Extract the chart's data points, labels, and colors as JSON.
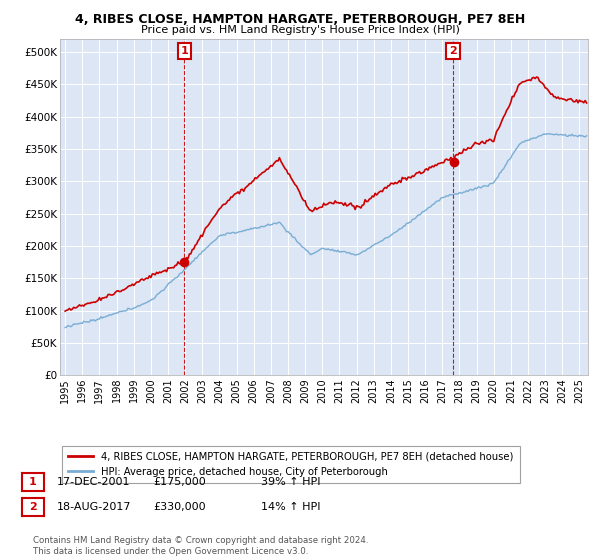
{
  "title1": "4, RIBES CLOSE, HAMPTON HARGATE, PETERBOROUGH, PE7 8EH",
  "title2": "Price paid vs. HM Land Registry's House Price Index (HPI)",
  "legend_label1": "4, RIBES CLOSE, HAMPTON HARGATE, PETERBOROUGH, PE7 8EH (detached house)",
  "legend_label2": "HPI: Average price, detached house, City of Peterborough",
  "transaction1_date": "17-DEC-2001",
  "transaction1_price": 175000,
  "transaction1_hpi": "39% ↑ HPI",
  "transaction2_date": "18-AUG-2017",
  "transaction2_price": 330000,
  "transaction2_hpi": "14% ↑ HPI",
  "footnote": "Contains HM Land Registry data © Crown copyright and database right 2024.\nThis data is licensed under the Open Government Licence v3.0.",
  "line_color_property": "#cc0000",
  "line_color_hpi": "#7aadd4",
  "vline_color": "#cc0000",
  "background_color": "#ffffff",
  "plot_bg_color": "#dce6f5",
  "ylim": [
    0,
    520000
  ],
  "yticks": [
    0,
    50000,
    100000,
    150000,
    200000,
    250000,
    300000,
    350000,
    400000,
    450000,
    500000
  ],
  "ytick_labels": [
    "£0",
    "£50K",
    "£100K",
    "£150K",
    "£200K",
    "£250K",
    "£300K",
    "£350K",
    "£400K",
    "£450K",
    "£500K"
  ],
  "t1_year": 2001.958,
  "t2_year": 2017.625,
  "xmin": 1994.7,
  "xmax": 2025.5
}
